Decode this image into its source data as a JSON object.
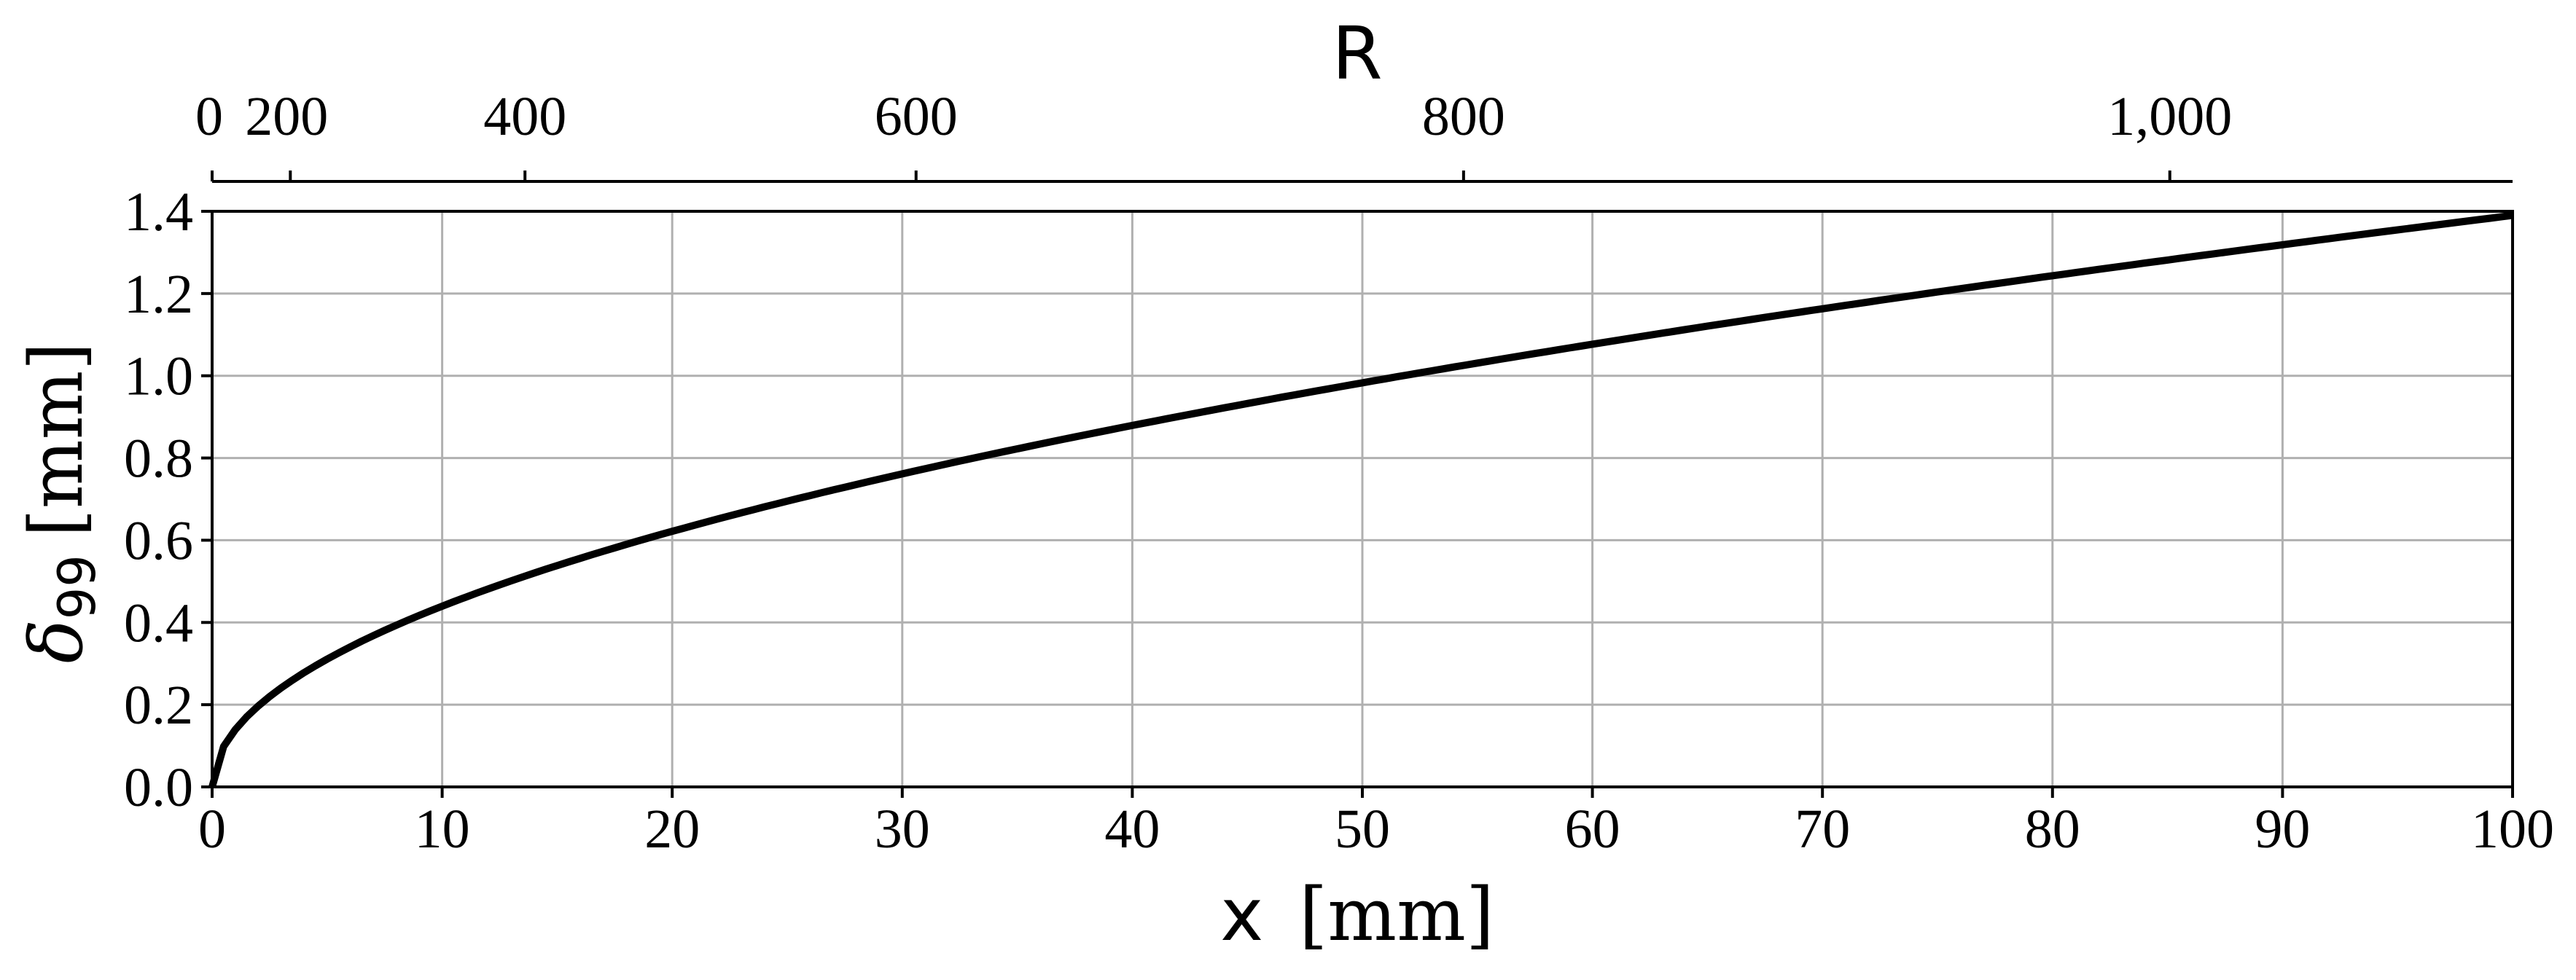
{
  "chart_data": {
    "type": "line",
    "title": "",
    "xlabel": "x [mm]",
    "xlabel_var": "x",
    "xlabel_unit": "[mm]",
    "ylabel": "δ99 [mm]",
    "ylabel_var": "δ",
    "ylabel_sub": "99",
    "ylabel_unit": "[mm]",
    "secondary_xlabel": "R",
    "xlim": [
      0,
      100
    ],
    "ylim": [
      0,
      1.4
    ],
    "grid": true,
    "legend": null,
    "xticks": [
      0,
      10,
      20,
      30,
      40,
      50,
      60,
      70,
      80,
      90,
      100
    ],
    "xtick_labels": [
      "0",
      "10",
      "20",
      "30",
      "40",
      "50",
      "60",
      "70",
      "80",
      "90",
      "100"
    ],
    "yticks": [
      0.0,
      0.2,
      0.4,
      0.6,
      0.8,
      1.0,
      1.2,
      1.4
    ],
    "ytick_labels": [
      "0.0",
      "0.2",
      "0.4",
      "0.6",
      "0.8",
      "1.0",
      "1.2",
      "1.4"
    ],
    "secondary_xticks": [
      0,
      200,
      400,
      600,
      800,
      1000
    ],
    "secondary_xtick_labels": [
      "0",
      "200",
      "400",
      "600",
      "800",
      "1,000"
    ],
    "secondary_xtick_positions_mm": [
      0,
      3.4,
      13.6,
      30.6,
      54.4,
      85.1
    ],
    "series": [
      {
        "name": "δ99",
        "color": "#000000",
        "x": [
          0,
          0.5,
          1,
          2,
          3,
          4,
          5,
          7.5,
          10,
          15,
          20,
          25,
          30,
          35,
          40,
          45,
          50,
          55,
          60,
          65,
          70,
          75,
          80,
          85,
          90,
          95,
          100
        ],
        "y": [
          0.0,
          0.098,
          0.139,
          0.197,
          0.241,
          0.278,
          0.311,
          0.381,
          0.44,
          0.538,
          0.622,
          0.695,
          0.761,
          0.822,
          0.879,
          0.932,
          0.983,
          1.031,
          1.077,
          1.121,
          1.163,
          1.204,
          1.243,
          1.282,
          1.319,
          1.355,
          1.39
        ]
      }
    ]
  },
  "colors": {
    "line": "#000000",
    "grid": "#b0b0b0",
    "axes": "#000000",
    "background": "#ffffff"
  }
}
